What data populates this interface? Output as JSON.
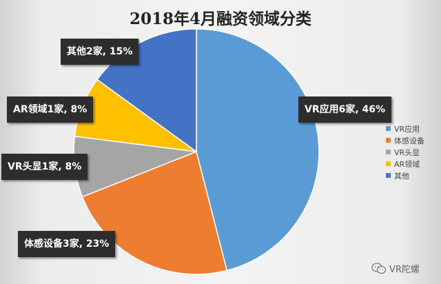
{
  "chart_data": {
    "type": "pie",
    "title": "2018年4月融资领域分类",
    "categories": [
      "VR应用",
      "体感设备",
      "VR头显",
      "AR领域",
      "其他"
    ],
    "values": [
      46,
      23,
      8,
      8,
      15
    ],
    "colors": [
      "#5B9BD5",
      "#ED7D31",
      "#A5A5A5",
      "#FFC000",
      "#4472C4"
    ],
    "data_labels": [
      "VR应用6家, 46%",
      "体感设备3家, 23%",
      "VR头显1家, 8%",
      "AR领域1家, 8%",
      "其他2家, 15%"
    ],
    "legend_position": "right"
  },
  "watermark": {
    "text": "VR陀螺",
    "icon": "wechat-icon"
  }
}
